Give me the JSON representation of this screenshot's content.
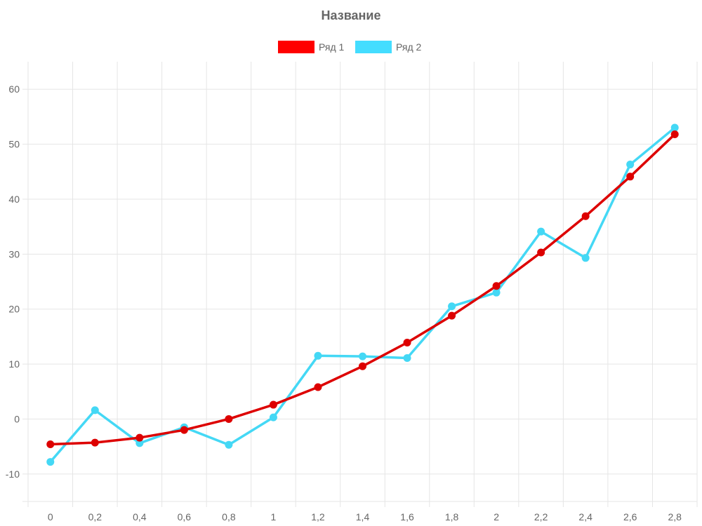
{
  "chart_data": {
    "type": "line",
    "title": "Название",
    "xlabel": "",
    "ylabel": "",
    "categories": [
      "0",
      "0,2",
      "0,4",
      "0,6",
      "0,8",
      "1",
      "1,2",
      "1,4",
      "1,6",
      "1,8",
      "2",
      "2,2",
      "2,4",
      "2,6",
      "2,8"
    ],
    "ylim": [
      -15,
      65
    ],
    "y_ticks": [
      -10,
      0,
      10,
      20,
      30,
      40,
      50,
      60
    ],
    "y_tick_labels": [
      "-10",
      "0",
      "10",
      "20",
      "30",
      "40",
      "50",
      "60"
    ],
    "grid": true,
    "legend_position": "top-center",
    "series": [
      {
        "name": "Ряд 1",
        "color": "#dd0000",
        "legend_color": "#ff0000",
        "values": [
          -4.6,
          -4.3,
          -3.4,
          -2.0,
          0.0,
          2.6,
          5.8,
          9.6,
          13.9,
          18.8,
          24.2,
          30.3,
          36.9,
          44.1,
          51.8
        ]
      },
      {
        "name": "Ряд 2",
        "color": "#44d8f5",
        "legend_color": "#44ddff",
        "values": [
          -7.8,
          1.6,
          -4.4,
          -1.5,
          -4.7,
          0.3,
          11.5,
          11.4,
          11.1,
          20.5,
          23.0,
          34.1,
          29.3,
          46.3,
          53.0
        ]
      }
    ]
  }
}
